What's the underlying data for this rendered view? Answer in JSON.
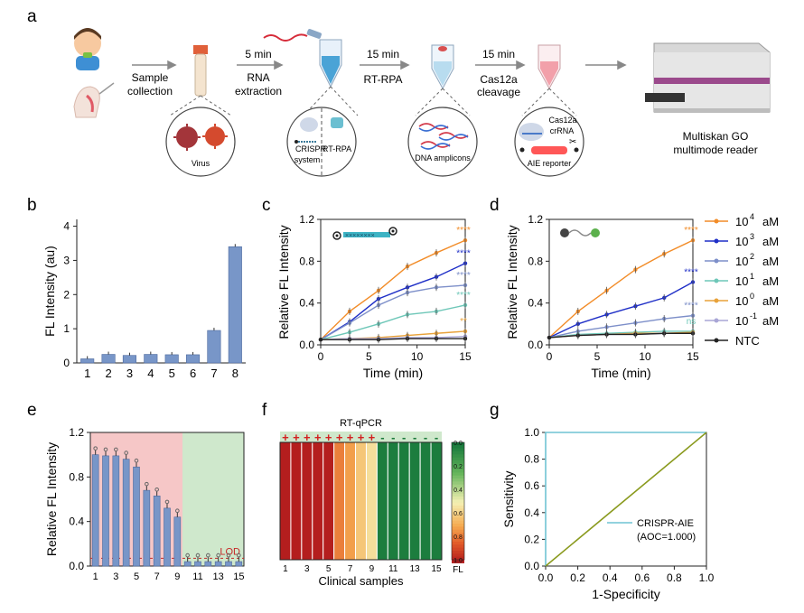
{
  "panel_letters": [
    "a",
    "b",
    "c",
    "d",
    "e",
    "f",
    "g"
  ],
  "workflow": {
    "sample_collection": [
      "Sample",
      "collection"
    ],
    "rna_time": "5 min",
    "rna_extraction": [
      "RNA",
      "extraction"
    ],
    "rpa_time": "15 min",
    "rpa_label": "RT-RPA",
    "cas_time": "15 min",
    "cas_label": [
      "Cas12a",
      "cleavage"
    ],
    "virus_label": "Virus",
    "crispr_label": [
      "CRISPR",
      "system"
    ],
    "rtrpa_label": "RT-RPA",
    "dna_label": "DNA amplicons",
    "cas12a_label": "Cas12a",
    "crrna_label": "crRNA",
    "aie_label": "AIE reporter",
    "reader_label": [
      "Multiskan GO",
      "multimode reader"
    ]
  },
  "legend_cd": [
    {
      "sup": "4",
      "label": "aM",
      "color": "#f28c28"
    },
    {
      "sup": "3",
      "label": "aM",
      "color": "#1f2fc7"
    },
    {
      "sup": "2",
      "label": "aM",
      "color": "#7d8fc9"
    },
    {
      "sup": "1",
      "label": "aM",
      "color": "#6ec7b8"
    },
    {
      "sup": "0",
      "label": "aM",
      "color": "#e8a23a"
    },
    {
      "sup": "-1",
      "label": "aM",
      "color": "#a9a6d6"
    },
    {
      "sup": "",
      "label": "NTC",
      "color": "#222222"
    }
  ],
  "legend_base": "10",
  "chart_data": [
    {
      "panel": "b",
      "type": "bar",
      "categories": [
        "1",
        "2",
        "3",
        "4",
        "5",
        "6",
        "7",
        "8"
      ],
      "values": [
        0.12,
        0.25,
        0.22,
        0.25,
        0.24,
        0.24,
        0.95,
        3.4
      ],
      "ylabel": "FL Intensity (au)",
      "yticks": [
        "0",
        "1",
        "2",
        "3",
        "4"
      ],
      "ylim": [
        0,
        4.2
      ]
    },
    {
      "panel": "c",
      "type": "line",
      "xlabel": "Time (min)",
      "ylabel": "Relative FL Intensity",
      "xticks": [
        "0",
        "5",
        "10",
        "15"
      ],
      "yticks": [
        "0.0",
        "0.4",
        "0.8",
        "1.2"
      ],
      "xlim": [
        0,
        15
      ],
      "ylim": [
        0,
        1.2
      ],
      "x": [
        0,
        3,
        6,
        9,
        12,
        15
      ],
      "series": [
        {
          "values": [
            0.05,
            0.32,
            0.52,
            0.75,
            0.88,
            1.0
          ],
          "color": "#f28c28",
          "sig": "****"
        },
        {
          "values": [
            0.05,
            0.22,
            0.44,
            0.55,
            0.65,
            0.78
          ],
          "color": "#1f2fc7",
          "sig": "****"
        },
        {
          "values": [
            0.05,
            0.21,
            0.38,
            0.5,
            0.55,
            0.57
          ],
          "color": "#7d8fc9",
          "sig": "****"
        },
        {
          "values": [
            0.05,
            0.12,
            0.2,
            0.29,
            0.32,
            0.38
          ],
          "color": "#6ec7b8",
          "sig": "****"
        },
        {
          "values": [
            0.05,
            0.06,
            0.07,
            0.09,
            0.11,
            0.13
          ],
          "color": "#e8a23a",
          "sig": "**"
        },
        {
          "values": [
            0.05,
            0.06,
            0.06,
            0.07,
            0.07,
            0.08
          ],
          "color": "#a9a6d6",
          "sig": ""
        },
        {
          "values": [
            0.05,
            0.05,
            0.05,
            0.06,
            0.06,
            0.06
          ],
          "color": "#222222",
          "sig": ""
        }
      ]
    },
    {
      "panel": "d",
      "type": "line",
      "xlabel": "Time (min)",
      "ylabel": "Relative FL Intensity",
      "xticks": [
        "0",
        "5",
        "10",
        "15"
      ],
      "yticks": [
        "0.0",
        "0.4",
        "0.8",
        "1.2"
      ],
      "xlim": [
        0,
        15
      ],
      "ylim": [
        0,
        1.2
      ],
      "x": [
        0,
        3,
        6,
        9,
        12,
        15
      ],
      "series": [
        {
          "values": [
            0.07,
            0.32,
            0.52,
            0.72,
            0.87,
            1.0
          ],
          "color": "#f28c28",
          "sig": "****"
        },
        {
          "values": [
            0.07,
            0.2,
            0.29,
            0.37,
            0.45,
            0.6
          ],
          "color": "#1f2fc7",
          "sig": "****"
        },
        {
          "values": [
            0.07,
            0.13,
            0.17,
            0.21,
            0.25,
            0.28
          ],
          "color": "#7d8fc9",
          "sig": "****"
        },
        {
          "values": [
            0.07,
            0.1,
            0.11,
            0.12,
            0.13,
            0.13
          ],
          "color": "#6ec7b8",
          "sig": "ns"
        },
        {
          "values": [
            0.07,
            0.09,
            0.1,
            0.11,
            0.11,
            0.12
          ],
          "color": "#e8a23a",
          "sig": ""
        },
        {
          "values": [
            0.07,
            0.09,
            0.1,
            0.1,
            0.11,
            0.11
          ],
          "color": "#a9a6d6",
          "sig": ""
        },
        {
          "values": [
            0.07,
            0.09,
            0.1,
            0.1,
            0.11,
            0.11
          ],
          "color": "#222222",
          "sig": ""
        }
      ]
    },
    {
      "panel": "e",
      "type": "bar",
      "categories": [
        "1",
        "2",
        "3",
        "4",
        "5",
        "6",
        "7",
        "8",
        "9",
        "10",
        "11",
        "12",
        "13",
        "14",
        "15"
      ],
      "xticks": [
        "1",
        "3",
        "5",
        "7",
        "9",
        "11",
        "13",
        "15"
      ],
      "values": [
        1.0,
        0.99,
        0.99,
        0.96,
        0.89,
        0.68,
        0.63,
        0.52,
        0.44,
        0.04,
        0.04,
        0.04,
        0.04,
        0.04,
        0.04
      ],
      "ylabel": "Relative FL Intensity",
      "yticks": [
        "0.0",
        "0.4",
        "0.8",
        "1.2"
      ],
      "ylim": [
        0,
        1.2
      ],
      "lod": 0.07,
      "lod_label": "LOD"
    },
    {
      "panel": "f",
      "type": "heatmap",
      "title": "RT-qPCR",
      "signs": [
        "+",
        "+",
        "+",
        "+",
        "+",
        "+",
        "+",
        "+",
        "+",
        "-",
        "-",
        "-",
        "-",
        "-",
        "-"
      ],
      "values": [
        1.0,
        1.0,
        1.0,
        1.0,
        1.0,
        0.78,
        0.72,
        0.62,
        0.55,
        0.02,
        0.02,
        0.02,
        0.02,
        0.02,
        0.02
      ],
      "xticks": [
        "1",
        "3",
        "5",
        "7",
        "9",
        "11",
        "13",
        "15"
      ],
      "xlabel": "Clinical samples",
      "colorbar_ticks": [
        "0.0",
        "0.2",
        "0.4",
        "0.6",
        "0.8",
        "1.0"
      ],
      "colorbar_label": "FL"
    },
    {
      "panel": "g",
      "type": "line",
      "xlabel": "1-Specificity",
      "ylabel": "Sensitivity",
      "xticks": [
        "0.0",
        "0.2",
        "0.4",
        "0.6",
        "0.8",
        "1.0"
      ],
      "yticks": [
        "0.0",
        "0.2",
        "0.4",
        "0.6",
        "0.8",
        "1.0"
      ],
      "xlim": [
        0,
        1
      ],
      "ylim": [
        0,
        1
      ],
      "series": [
        {
          "name": "CRISPR-AIE",
          "x": [
            0,
            0,
            1
          ],
          "y": [
            0,
            1,
            1
          ],
          "color": "#6fc3d3"
        },
        {
          "x": [
            0,
            1
          ],
          "y": [
            0,
            1
          ],
          "color": "#8a9a1e"
        }
      ],
      "legend_lines": [
        "CRISPR-AIE",
        "(AOC=1.000)"
      ]
    }
  ]
}
